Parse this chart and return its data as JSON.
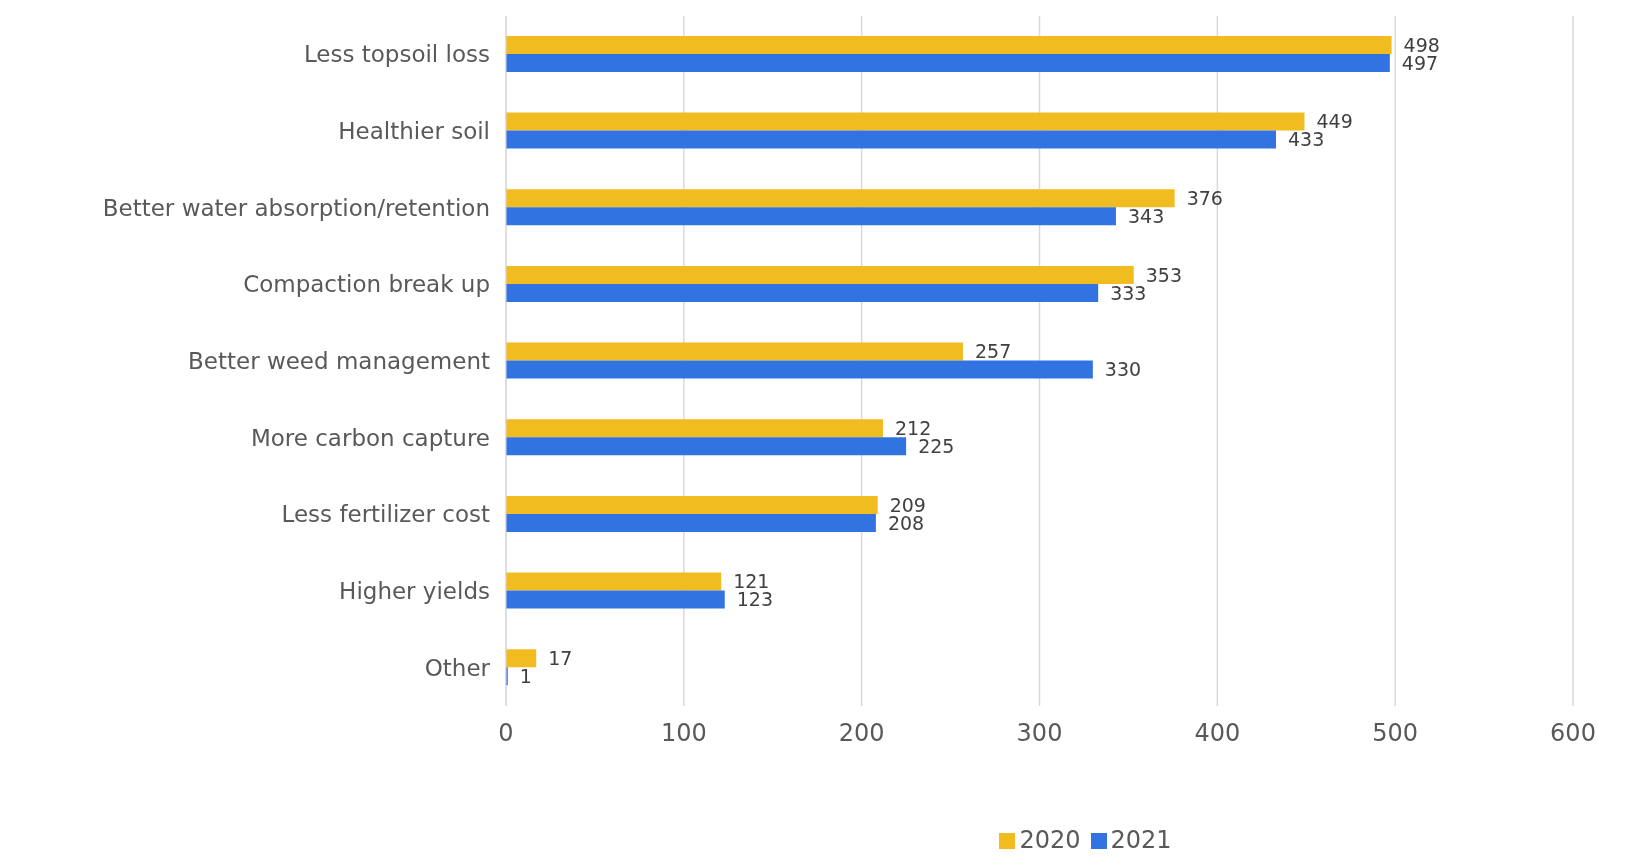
{
  "chart_data": {
    "type": "bar",
    "orientation": "horizontal",
    "categories": [
      "Less topsoil loss",
      "Healthier soil",
      "Better water absorption/retention",
      "Compaction break up",
      "Better weed management",
      "More carbon capture",
      "Less fertilizer cost",
      "Higher yields",
      "Other"
    ],
    "series": [
      {
        "name": "2020",
        "color": "#f0bc1f",
        "values": [
          498,
          449,
          376,
          353,
          257,
          212,
          209,
          121,
          17
        ]
      },
      {
        "name": "2021",
        "color": "#3273e2",
        "values": [
          497,
          433,
          343,
          333,
          330,
          225,
          208,
          123,
          1
        ]
      }
    ],
    "xlim": [
      0,
      600
    ],
    "xticks": [
      0,
      100,
      200,
      300,
      400,
      500,
      600
    ],
    "grid": "x",
    "legend": "bottom",
    "data_labels": true
  }
}
